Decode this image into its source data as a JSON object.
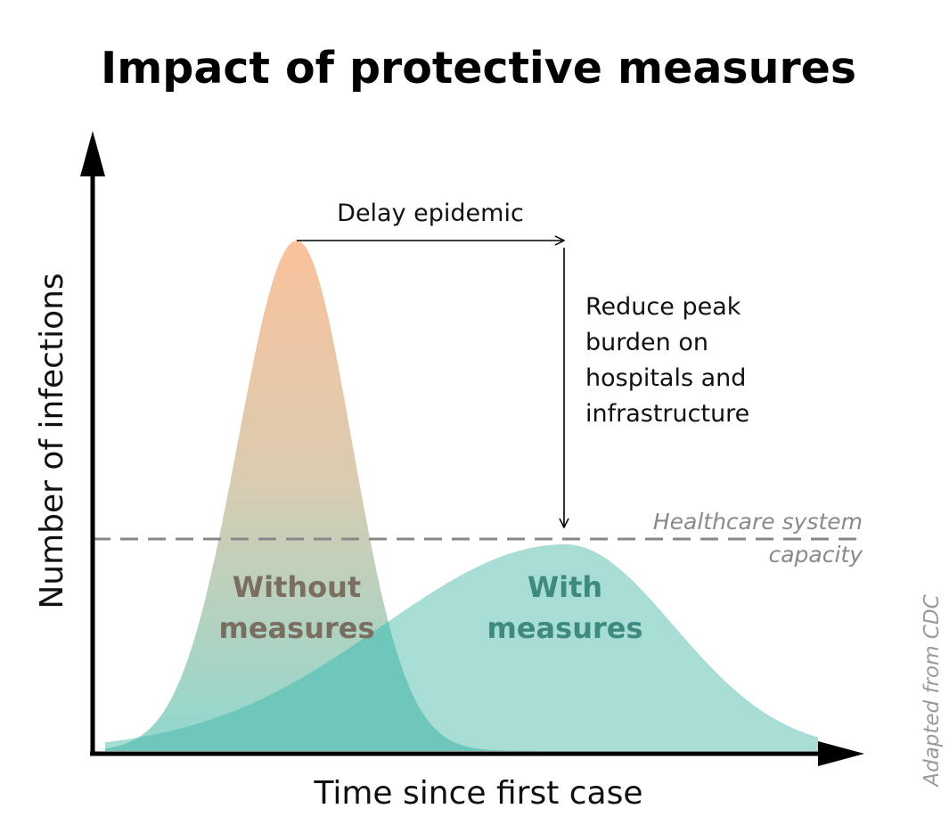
{
  "title": "Impact of protective measures",
  "y_axis_label": "Number of infections",
  "x_axis_label": "Time since first case",
  "annotations": {
    "delay": "Delay epidemic",
    "reduce_peak": [
      "Reduce peak",
      "burden on",
      "hospitals and",
      "infrastructure"
    ]
  },
  "capacity_label": [
    "Healthcare system",
    "capacity"
  ],
  "curves": {
    "without": {
      "label": [
        "Without",
        "measures"
      ],
      "color_top": "#f9c29c",
      "color_bottom": "#8fd8cf",
      "label_color": "#7a6e60"
    },
    "with": {
      "label": [
        "With",
        "measures"
      ],
      "color": "#a8ddd5",
      "label_color": "#3f8a80"
    }
  },
  "overlap_color": "#6ec7ba",
  "capacity_line_color": "#888888",
  "credit": "Adapted from CDC"
}
